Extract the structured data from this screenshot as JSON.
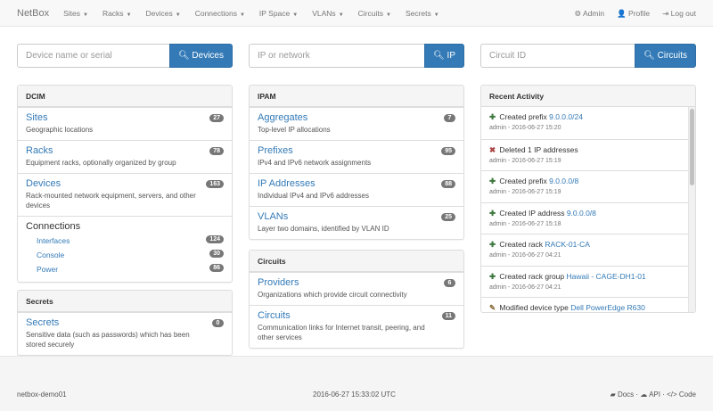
{
  "nav": {
    "brand": "NetBox",
    "menus": [
      "Sites",
      "Racks",
      "Devices",
      "Connections",
      "IP Space",
      "VLANs",
      "Circuits",
      "Secrets"
    ],
    "right": [
      {
        "icon": "gear-icon",
        "glyph": "⚙",
        "label": "Admin"
      },
      {
        "icon": "user-icon",
        "glyph": "👤",
        "label": "Profile"
      },
      {
        "icon": "logout-icon",
        "glyph": "⇥",
        "label": "Log out"
      }
    ]
  },
  "searches": [
    {
      "placeholder": "Device name or serial",
      "button": "Devices"
    },
    {
      "placeholder": "IP or network",
      "button": "IP"
    },
    {
      "placeholder": "Circuit ID",
      "button": "Circuits"
    }
  ],
  "dcim": {
    "title": "DCIM",
    "items": [
      {
        "title": "Sites",
        "desc": "Geographic locations",
        "count": "27"
      },
      {
        "title": "Racks",
        "desc": "Equipment racks, optionally organized by group",
        "count": "78"
      },
      {
        "title": "Devices",
        "desc": "Rack-mounted network equipment, servers, and other devices",
        "count": "163"
      }
    ],
    "connections": {
      "title": "Connections",
      "items": [
        {
          "label": "Interfaces",
          "count": "124"
        },
        {
          "label": "Console",
          "count": "30"
        },
        {
          "label": "Power",
          "count": "86"
        }
      ]
    }
  },
  "secrets": {
    "title": "Secrets",
    "items": [
      {
        "title": "Secrets",
        "desc": "Sensitive data (such as passwords) which has been stored securely",
        "count": "0"
      }
    ]
  },
  "ipam": {
    "title": "IPAM",
    "items": [
      {
        "title": "Aggregates",
        "desc": "Top-level IP allocations",
        "count": "7"
      },
      {
        "title": "Prefixes",
        "desc": "IPv4 and IPv6 network assignments",
        "count": "95"
      },
      {
        "title": "IP Addresses",
        "desc": "Individual IPv4 and IPv6 addresses",
        "count": "88"
      },
      {
        "title": "VLANs",
        "desc": "Layer two domains, identified by VLAN ID",
        "count": "25"
      }
    ]
  },
  "circuits": {
    "title": "Circuits",
    "items": [
      {
        "title": "Providers",
        "desc": "Organizations which provide circuit connectivity",
        "count": "6"
      },
      {
        "title": "Circuits",
        "desc": "Communication links for Internet transit, peering, and other services",
        "count": "11"
      }
    ]
  },
  "activity": {
    "title": "Recent Activity",
    "items": [
      {
        "icon": "plus-icon",
        "action": "Created prefix",
        "link": "9.0.0.0/24",
        "meta": "admin - 2016-06-27 15:20"
      },
      {
        "icon": "x-icon",
        "action": "Deleted 1 IP addresses",
        "link": "",
        "meta": "admin - 2016-06-27 15:19"
      },
      {
        "icon": "plus-icon",
        "action": "Created prefix",
        "link": "9.0.0.0/8",
        "meta": "admin - 2016-06-27 15:19"
      },
      {
        "icon": "plus-icon",
        "action": "Created IP address",
        "link": "9.0.0.0/8",
        "meta": "admin - 2016-06-27 15:18"
      },
      {
        "icon": "plus-icon",
        "action": "Created rack",
        "link": "RACK-01-CA",
        "meta": "admin - 2016-06-27 04:21"
      },
      {
        "icon": "plus-icon",
        "action": "Created rack group",
        "link": "Hawaii - CAGE-DH1-01",
        "meta": "admin - 2016-06-27 04:21"
      },
      {
        "icon": "pencil-icon",
        "action": "Modified device type",
        "link": "Dell PowerEdge R630",
        "meta": ""
      }
    ]
  },
  "footer": {
    "host": "netbox-demo01",
    "time": "2016-06-27 15:33:02 UTC",
    "links": [
      {
        "icon": "book-icon",
        "glyph": "▰",
        "label": "Docs"
      },
      {
        "icon": "cloud-icon",
        "glyph": "☁",
        "label": "API"
      },
      {
        "icon": "code-icon",
        "glyph": "</>",
        "label": "Code"
      }
    ]
  },
  "colors": {
    "primary": "#337ab7",
    "plus": "#3c763d",
    "delete": "#a94442",
    "badge": "#777777"
  }
}
